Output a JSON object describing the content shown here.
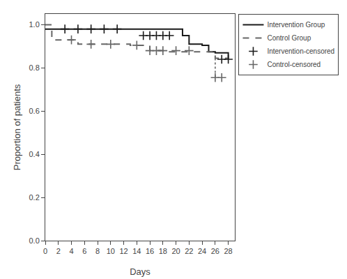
{
  "chart_data": {
    "type": "step",
    "xlabel": "Days",
    "ylabel": "Proportion of patients",
    "series": [
      {
        "name": "Intervention Group",
        "type": "step",
        "color": "#1a1a1a",
        "line_style": "solid",
        "x": [
          0,
          14,
          21,
          22,
          24,
          25,
          26,
          28
        ],
        "values": [
          0.98,
          0.98,
          0.95,
          0.91,
          0.905,
          0.875,
          0.87,
          0.84
        ]
      },
      {
        "name": "Control Group",
        "type": "step",
        "color": "#666666",
        "line_style": "dashed",
        "x": [
          0,
          1,
          5,
          13,
          16,
          18,
          26,
          28
        ],
        "values": [
          1.0,
          0.93,
          0.91,
          0.905,
          0.88,
          0.875,
          0.845,
          0.845
        ]
      },
      {
        "type": "line",
        "color": "#666666",
        "line_style": "dotted",
        "x": [
          26,
          26
        ],
        "values": [
          0.845,
          0.755
        ]
      },
      {
        "name": "Intervention-censored",
        "type": "scatter",
        "color": "#1a1a1a",
        "marker": "plus",
        "x": [
          3,
          5,
          7,
          9,
          11,
          15,
          16,
          17,
          18,
          19,
          27,
          28
        ],
        "values": [
          0.98,
          0.98,
          0.98,
          0.98,
          0.98,
          0.95,
          0.95,
          0.95,
          0.95,
          0.95,
          0.84,
          0.84
        ]
      },
      {
        "name": "Control-censored",
        "type": "scatter",
        "color": "#666666",
        "marker": "plus",
        "x": [
          4,
          7,
          10,
          14,
          16,
          17,
          18,
          20,
          22,
          26,
          27
        ],
        "values": [
          0.93,
          0.91,
          0.91,
          0.905,
          0.88,
          0.88,
          0.88,
          0.88,
          0.88,
          0.755,
          0.755
        ]
      }
    ],
    "xlim": [
      0,
      29
    ],
    "xticks": [
      0,
      2,
      4,
      6,
      8,
      10,
      12,
      14,
      16,
      18,
      20,
      22,
      24,
      26,
      28
    ],
    "ylim": [
      0.0,
      1.05
    ],
    "yticks": [
      {
        "value": 0.0,
        "label": "0.0"
      },
      0.2,
      0.4,
      0.6,
      0.8,
      {
        "value": 1.0,
        "label": "1.0"
      }
    ],
    "grid": false,
    "legend": "right"
  }
}
